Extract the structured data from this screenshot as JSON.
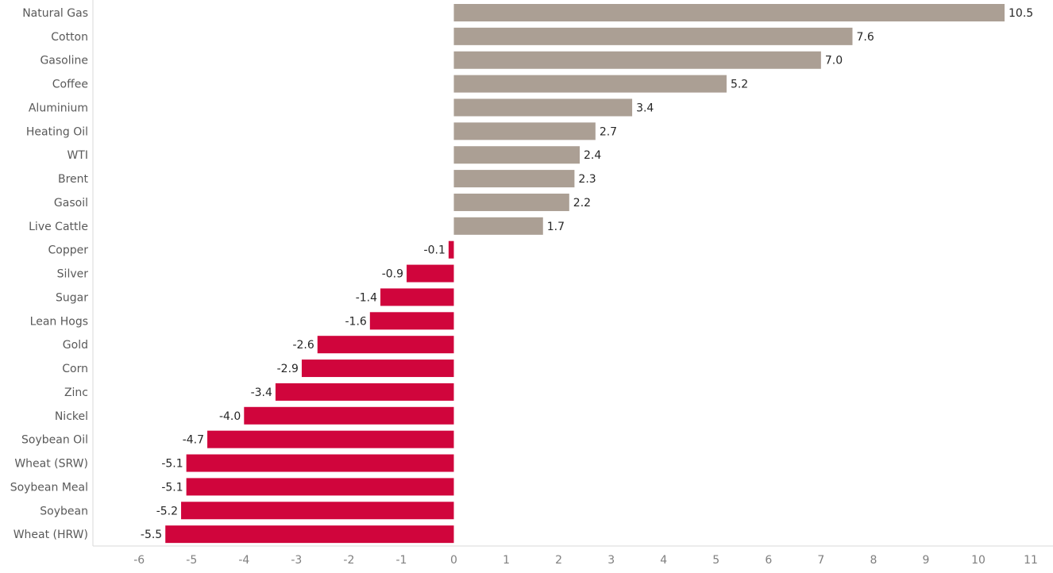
{
  "chart_data": {
    "type": "bar",
    "orientation": "horizontal",
    "title": "",
    "xlabel": "",
    "ylabel": "",
    "xlim": [
      -6,
      11
    ],
    "x_ticks": [
      -6,
      -5,
      -4,
      -3,
      -2,
      -1,
      0,
      1,
      2,
      3,
      4,
      5,
      6,
      7,
      8,
      9,
      10,
      11
    ],
    "grid": false,
    "legend": "none",
    "categories": [
      "Natural Gas",
      "Cotton",
      "Gasoline",
      "Coffee",
      "Aluminium",
      "Heating Oil",
      "WTI",
      "Brent",
      "Gasoil",
      "Live Cattle",
      "Copper",
      "Silver",
      "Sugar",
      "Lean Hogs",
      "Gold",
      "Corn",
      "Zinc",
      "Nickel",
      "Soybean Oil",
      "Wheat (SRW)",
      "Soybean Meal",
      "Soybean",
      "Wheat (HRW)"
    ],
    "values": [
      10.5,
      7.6,
      7.0,
      5.2,
      3.4,
      2.7,
      2.4,
      2.3,
      2.2,
      1.7,
      -0.1,
      -0.9,
      -1.4,
      -1.6,
      -2.6,
      -2.9,
      -3.4,
      -4.0,
      -4.7,
      -5.1,
      -5.1,
      -5.2,
      -5.5
    ],
    "value_labels": [
      "10.5",
      "7.6",
      "7.0",
      "5.2",
      "3.4",
      "2.7",
      "2.4",
      "2.3",
      "2.2",
      "1.7",
      "-0.1",
      "-0.9",
      "-1.4",
      "-1.6",
      "-2.6",
      "-2.9",
      "-3.4",
      "-4.0",
      "-4.7",
      "-5.1",
      "-5.1",
      "-5.2",
      "-5.5"
    ],
    "colors": {
      "positive": "#ab9f94",
      "negative": "#d0053c",
      "axis": "#d9d9d9",
      "category_text": "#595959",
      "tick_text": "#7f7f7f",
      "label_text": "#262626"
    }
  }
}
